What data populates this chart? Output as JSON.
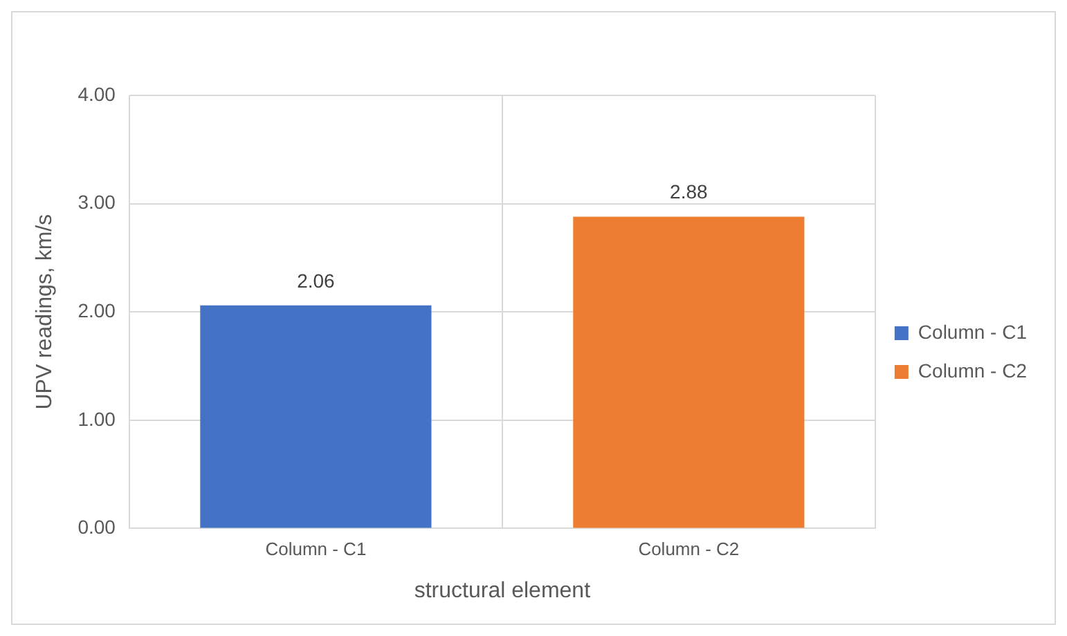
{
  "chart_data": {
    "type": "bar",
    "xlabel": "structural element",
    "ylabel": "UPV readings, km/s",
    "categories": [
      "Column - C1",
      "Column - C2"
    ],
    "series": [
      {
        "name": "Column - C1",
        "color": "#4472c4",
        "values": [
          2.06,
          null
        ]
      },
      {
        "name": "Column - C2",
        "color": "#ed7d31",
        "values": [
          null,
          2.88
        ]
      }
    ],
    "ylim": [
      0,
      4
    ],
    "yticks": [
      {
        "value": 0,
        "label": "0.00"
      },
      {
        "value": 1,
        "label": "1.00"
      },
      {
        "value": 2,
        "label": "2.00"
      },
      {
        "value": 3,
        "label": "3.00"
      },
      {
        "value": 4,
        "label": "4.00"
      }
    ],
    "grid": true,
    "legend": "right",
    "data_labels": true
  }
}
